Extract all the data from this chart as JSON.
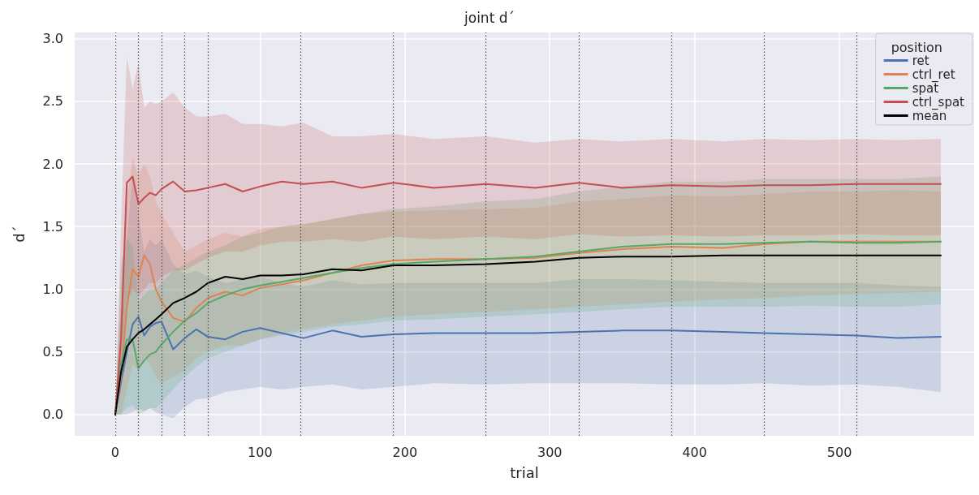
{
  "chart_data": {
    "type": "line",
    "title": "joint d´",
    "xlabel": "trial",
    "ylabel": "d´",
    "legend_title": "position",
    "legend": "top right",
    "grid": true,
    "marker": "none",
    "line_style": "solid",
    "xlim": [
      -28,
      593
    ],
    "xticks": [
      0,
      100,
      200,
      300,
      400,
      500
    ],
    "ylim": [
      -0.17,
      3.05
    ],
    "yticks": [
      {
        "value": 0,
        "label": "0.0"
      },
      0.5,
      {
        "value": 1,
        "label": "1.0"
      },
      1.5,
      {
        "value": 2,
        "label": "2.0"
      },
      2.5,
      {
        "value": 3,
        "label": "3.0"
      }
    ],
    "x": [
      0,
      4,
      8,
      12,
      16,
      20,
      24,
      28,
      32,
      40,
      48,
      56,
      64,
      76,
      88,
      100,
      115,
      130,
      150,
      170,
      192,
      220,
      256,
      290,
      320,
      350,
      384,
      420,
      448,
      480,
      512,
      540,
      570
    ],
    "series": [
      {
        "name": "ret",
        "color": "#4c72b0",
        "values": [
          0,
          0.26,
          0.5,
          0.72,
          0.78,
          0.63,
          0.7,
          0.73,
          0.74,
          0.52,
          0.61,
          0.68,
          0.62,
          0.6,
          0.66,
          0.69,
          0.65,
          0.61,
          0.67,
          0.62,
          0.64,
          0.65,
          0.65,
          0.65,
          0.66,
          0.67,
          0.67,
          0.66,
          0.65,
          0.64,
          0.63,
          0.61,
          0.62
        ],
        "lower": [
          0,
          0,
          0,
          0.02,
          0.05,
          0.03,
          0.05,
          0.02,
          0,
          -0.03,
          0.06,
          0.12,
          0.13,
          0.18,
          0.2,
          0.22,
          0.2,
          0.22,
          0.24,
          0.2,
          0.22,
          0.25,
          0.24,
          0.25,
          0.25,
          0.25,
          0.24,
          0.24,
          0.25,
          0.23,
          0.24,
          0.22,
          0.18
        ],
        "upper": [
          0,
          0.8,
          1.4,
          1.9,
          1.6,
          1.3,
          1.4,
          1.35,
          1.4,
          1.2,
          1.12,
          1.15,
          1.1,
          1.05,
          1.08,
          1.1,
          1.05,
          1.02,
          1.07,
          1.04,
          1.05,
          1.05,
          1.05,
          1.05,
          1.08,
          1.08,
          1.07,
          1.06,
          1.05,
          1.05,
          1.05,
          1.03,
          1.02
        ]
      },
      {
        "name": "ctrl_ret",
        "color": "#dd8452",
        "values": [
          0,
          0.3,
          0.85,
          1.16,
          1.1,
          1.27,
          1.2,
          1.0,
          0.9,
          0.77,
          0.74,
          0.85,
          0.93,
          0.98,
          0.95,
          1.01,
          1.04,
          1.07,
          1.13,
          1.19,
          1.23,
          1.24,
          1.24,
          1.25,
          1.29,
          1.32,
          1.34,
          1.33,
          1.36,
          1.38,
          1.38,
          1.38,
          1.38
        ],
        "lower": [
          0,
          0,
          0.2,
          0.4,
          0.35,
          0.45,
          0.4,
          0.3,
          0.25,
          0.3,
          0.35,
          0.45,
          0.5,
          0.55,
          0.55,
          0.6,
          0.65,
          0.68,
          0.72,
          0.75,
          0.78,
          0.8,
          0.82,
          0.84,
          0.86,
          0.88,
          0.9,
          0.92,
          0.93,
          0.95,
          0.96,
          0.97,
          0.98
        ],
        "upper": [
          0,
          1.0,
          1.7,
          2.05,
          1.9,
          2.0,
          1.9,
          1.7,
          1.6,
          1.45,
          1.3,
          1.35,
          1.4,
          1.45,
          1.42,
          1.48,
          1.5,
          1.52,
          1.56,
          1.6,
          1.62,
          1.63,
          1.64,
          1.65,
          1.7,
          1.72,
          1.75,
          1.74,
          1.76,
          1.78,
          1.78,
          1.79,
          1.78
        ]
      },
      {
        "name": "spat",
        "color": "#55a868",
        "values": [
          0,
          0.4,
          0.6,
          0.6,
          0.37,
          0.43,
          0.48,
          0.5,
          0.56,
          0.66,
          0.75,
          0.81,
          0.89,
          0.95,
          1.0,
          1.03,
          1.06,
          1.09,
          1.13,
          1.17,
          1.2,
          1.22,
          1.24,
          1.26,
          1.3,
          1.34,
          1.36,
          1.36,
          1.37,
          1.38,
          1.37,
          1.37,
          1.38
        ],
        "lower": [
          0,
          0,
          0.05,
          0.08,
          0,
          0.02,
          0.05,
          0.05,
          0.1,
          0.2,
          0.3,
          0.38,
          0.45,
          0.5,
          0.55,
          0.6,
          0.63,
          0.66,
          0.7,
          0.72,
          0.75,
          0.76,
          0.78,
          0.8,
          0.82,
          0.84,
          0.86,
          0.86,
          0.86,
          0.87,
          0.86,
          0.86,
          0.88
        ],
        "upper": [
          0,
          1.2,
          1.4,
          1.35,
          0.9,
          0.95,
          1.0,
          1.0,
          1.05,
          1.15,
          1.2,
          1.25,
          1.3,
          1.35,
          1.42,
          1.45,
          1.5,
          1.52,
          1.56,
          1.6,
          1.64,
          1.66,
          1.7,
          1.72,
          1.78,
          1.82,
          1.86,
          1.86,
          1.88,
          1.88,
          1.88,
          1.88,
          1.9
        ]
      },
      {
        "name": "ctrl_spat",
        "color": "#c44e52",
        "values": [
          0,
          0.6,
          1.85,
          1.9,
          1.68,
          1.73,
          1.77,
          1.75,
          1.8,
          1.86,
          1.78,
          1.79,
          1.81,
          1.84,
          1.78,
          1.82,
          1.86,
          1.84,
          1.86,
          1.81,
          1.85,
          1.81,
          1.84,
          1.81,
          1.85,
          1.81,
          1.83,
          1.82,
          1.83,
          1.83,
          1.84,
          1.84,
          1.84
        ],
        "lower": [
          0,
          0.2,
          0.9,
          1.0,
          0.95,
          1.0,
          1.05,
          1.05,
          1.1,
          1.15,
          1.15,
          1.2,
          1.25,
          1.3,
          1.3,
          1.35,
          1.38,
          1.38,
          1.4,
          1.38,
          1.42,
          1.4,
          1.42,
          1.4,
          1.44,
          1.42,
          1.43,
          1.42,
          1.43,
          1.43,
          1.44,
          1.43,
          1.43
        ],
        "upper": [
          0,
          1.5,
          2.85,
          2.6,
          2.8,
          2.45,
          2.5,
          2.48,
          2.5,
          2.57,
          2.45,
          2.38,
          2.38,
          2.4,
          2.32,
          2.32,
          2.3,
          2.33,
          2.22,
          2.22,
          2.24,
          2.2,
          2.22,
          2.17,
          2.2,
          2.18,
          2.2,
          2.18,
          2.2,
          2.19,
          2.2,
          2.19,
          2.2
        ]
      },
      {
        "name": "mean",
        "color": "#000000",
        "values": [
          0,
          0.34,
          0.54,
          0.6,
          0.65,
          0.68,
          0.72,
          0.76,
          0.8,
          0.89,
          0.93,
          0.98,
          1.05,
          1.1,
          1.08,
          1.11,
          1.11,
          1.12,
          1.16,
          1.15,
          1.19,
          1.19,
          1.2,
          1.22,
          1.25,
          1.26,
          1.26,
          1.27,
          1.27,
          1.27,
          1.27,
          1.27,
          1.27
        ]
      }
    ],
    "ref_lines": [
      {
        "axis": "x",
        "value": 0,
        "color": "#555555",
        "line_style": "dotted"
      },
      {
        "axis": "x",
        "value": 16,
        "color": "#555555",
        "line_style": "dotted"
      },
      {
        "axis": "x",
        "value": 32,
        "color": "#555555",
        "line_style": "dotted"
      },
      {
        "axis": "x",
        "value": 48,
        "color": "#555555",
        "line_style": "dotted"
      },
      {
        "axis": "x",
        "value": 64,
        "color": "#555555",
        "line_style": "dotted"
      },
      {
        "axis": "x",
        "value": 128,
        "color": "#555555",
        "line_style": "dotted"
      },
      {
        "axis": "x",
        "value": 192,
        "color": "#555555",
        "line_style": "dotted"
      },
      {
        "axis": "x",
        "value": 256,
        "color": "#555555",
        "line_style": "dotted"
      },
      {
        "axis": "x",
        "value": 320,
        "color": "#555555",
        "line_style": "dotted"
      },
      {
        "axis": "x",
        "value": 384,
        "color": "#555555",
        "line_style": "dotted"
      },
      {
        "axis": "x",
        "value": 448,
        "color": "#555555",
        "line_style": "dotted"
      },
      {
        "axis": "x",
        "value": 512,
        "color": "#555555",
        "line_style": "dotted"
      }
    ]
  }
}
